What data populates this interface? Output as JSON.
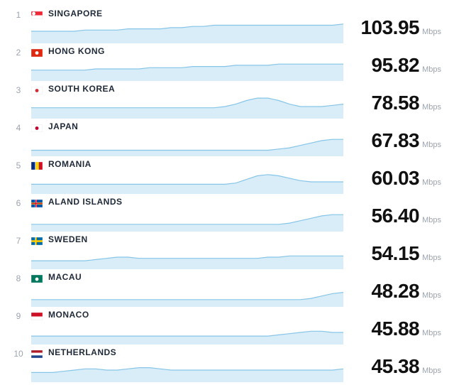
{
  "unit_label": "Mbps",
  "chart": {
    "type": "sparkline-area",
    "spark_width": 420,
    "spark_height": 34,
    "area_fill": "#d9edf9",
    "line_stroke": "#86c5e8",
    "text_color": "#1f2937",
    "rank_color": "#9ca3af",
    "value_color": "#111111",
    "unit_color": "#9ca3af",
    "bg": "#ffffff",
    "country_fontsize": 12,
    "value_fontsize": 28,
    "rank_fontsize": 12,
    "unit_fontsize": 11
  },
  "rows": [
    {
      "rank": 1,
      "country": "SINGAPORE",
      "speed": "103.95",
      "flag": "sg",
      "series": [
        10,
        10,
        10,
        10,
        10,
        11,
        11,
        11,
        11,
        12,
        12,
        12,
        12,
        13,
        13,
        14,
        14,
        15,
        15,
        15,
        15,
        15,
        15,
        15,
        15,
        15,
        15,
        15,
        15,
        16
      ]
    },
    {
      "rank": 2,
      "country": "HONG KONG",
      "speed": "95.82",
      "flag": "hk",
      "series": [
        9,
        9,
        9,
        9,
        9,
        9,
        10,
        10,
        10,
        10,
        10,
        11,
        11,
        11,
        11,
        12,
        12,
        12,
        12,
        13,
        13,
        13,
        13,
        14,
        14,
        14,
        14,
        14,
        14,
        14
      ]
    },
    {
      "rank": 3,
      "country": "SOUTH KOREA",
      "speed": "78.58",
      "flag": "kr",
      "series": [
        9,
        9,
        9,
        9,
        9,
        9,
        9,
        9,
        9,
        9,
        9,
        9,
        9,
        9,
        9,
        9,
        9,
        9,
        10,
        12,
        15,
        17,
        17,
        15,
        12,
        10,
        10,
        10,
        11,
        12
      ]
    },
    {
      "rank": 4,
      "country": "JAPAN",
      "speed": "67.83",
      "flag": "jp",
      "series": [
        5,
        5,
        5,
        5,
        5,
        5,
        5,
        5,
        5,
        5,
        5,
        5,
        5,
        5,
        5,
        5,
        5,
        5,
        5,
        5,
        5,
        5,
        5,
        6,
        7,
        9,
        11,
        13,
        14,
        14
      ]
    },
    {
      "rank": 5,
      "country": "ROMANIA",
      "speed": "60.03",
      "flag": "ro",
      "series": [
        8,
        8,
        8,
        8,
        8,
        8,
        8,
        8,
        8,
        8,
        8,
        8,
        8,
        8,
        8,
        8,
        8,
        8,
        8,
        9,
        12,
        15,
        16,
        15,
        13,
        11,
        10,
        10,
        10,
        10
      ]
    },
    {
      "rank": 6,
      "country": "ALAND ISLANDS",
      "speed": "56.40",
      "flag": "ax",
      "series": [
        6,
        6,
        6,
        6,
        6,
        6,
        6,
        6,
        6,
        6,
        6,
        6,
        6,
        6,
        6,
        6,
        6,
        6,
        6,
        6,
        6,
        6,
        6,
        6,
        7,
        9,
        11,
        13,
        14,
        14
      ]
    },
    {
      "rank": 7,
      "country": "SWEDEN",
      "speed": "54.15",
      "flag": "se",
      "series": [
        7,
        7,
        7,
        7,
        7,
        7,
        8,
        9,
        10,
        10,
        9,
        9,
        9,
        9,
        9,
        9,
        9,
        9,
        9,
        9,
        9,
        9,
        10,
        10,
        11,
        11,
        11,
        11,
        11,
        11
      ]
    },
    {
      "rank": 8,
      "country": "MACAU",
      "speed": "48.28",
      "flag": "mo",
      "series": [
        6,
        6,
        6,
        6,
        6,
        6,
        6,
        6,
        6,
        6,
        6,
        6,
        6,
        6,
        6,
        6,
        6,
        6,
        6,
        6,
        6,
        6,
        6,
        6,
        6,
        6,
        7,
        9,
        11,
        12
      ]
    },
    {
      "rank": 9,
      "country": "MONACO",
      "speed": "45.88",
      "flag": "mc",
      "series": [
        7,
        7,
        7,
        7,
        7,
        7,
        7,
        7,
        7,
        7,
        7,
        7,
        7,
        7,
        7,
        7,
        7,
        7,
        7,
        7,
        7,
        7,
        7,
        8,
        9,
        10,
        11,
        11,
        10,
        10
      ]
    },
    {
      "rank": 10,
      "country": "NETHERLANDS",
      "speed": "45.38",
      "flag": "nl",
      "series": [
        8,
        8,
        8,
        9,
        10,
        11,
        11,
        10,
        10,
        11,
        12,
        12,
        11,
        10,
        10,
        10,
        10,
        10,
        10,
        10,
        10,
        10,
        10,
        10,
        10,
        10,
        10,
        10,
        10,
        11
      ]
    }
  ],
  "flags": {
    "sg": {
      "bars": [
        [
          "#ed2939",
          "50%"
        ],
        [
          "#ffffff",
          "50%"
        ]
      ],
      "dot": "#ffffff",
      "dotpos": "22% 28%"
    },
    "hk": {
      "bars": [
        [
          "#de2910",
          "100%"
        ]
      ],
      "dot": "#ffffff",
      "dotpos": "50% 50%"
    },
    "kr": {
      "bars": [
        [
          "#ffffff",
          "100%"
        ]
      ],
      "dot": "#cd2e3a",
      "dotpos": "50% 50%"
    },
    "jp": {
      "bars": [
        [
          "#ffffff",
          "100%"
        ]
      ],
      "dot": "#bc002d",
      "dotpos": "50% 50%"
    },
    "ro": {
      "cols": [
        [
          "#002b7f",
          "33.33%"
        ],
        [
          "#fcd116",
          "33.34%"
        ],
        [
          "#ce1126",
          "33.33%"
        ]
      ]
    },
    "ax": {
      "bars": [
        [
          "#0053a5",
          "100%"
        ]
      ],
      "cross": [
        "#ffce00",
        "#d21034"
      ]
    },
    "se": {
      "bars": [
        [
          "#006aa7",
          "100%"
        ]
      ],
      "cross": [
        "#fecc00"
      ]
    },
    "mo": {
      "bars": [
        [
          "#00785e",
          "100%"
        ]
      ],
      "dot": "#ffffff",
      "dotpos": "50% 55%"
    },
    "mc": {
      "bars": [
        [
          "#ce1126",
          "50%"
        ],
        [
          "#ffffff",
          "50%"
        ]
      ]
    },
    "nl": {
      "bars": [
        [
          "#ae1c28",
          "33.33%"
        ],
        [
          "#ffffff",
          "33.34%"
        ],
        [
          "#21468b",
          "33.33%"
        ]
      ]
    }
  }
}
